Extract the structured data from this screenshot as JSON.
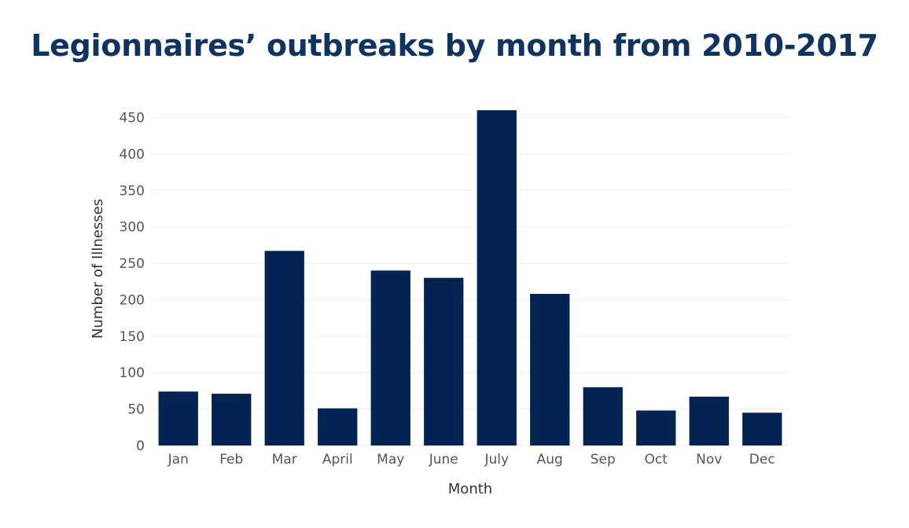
{
  "chart_data": {
    "type": "bar",
    "title": "Legionnaires’ outbreaks by month from 2010-2017",
    "xlabel": "Month",
    "ylabel": "Number of Illnesses",
    "categories": [
      "Jan",
      "Feb",
      "Mar",
      "April",
      "May",
      "June",
      "July",
      "Aug",
      "Sep",
      "Oct",
      "Nov",
      "Dec"
    ],
    "values": [
      74,
      71,
      267,
      51,
      240,
      230,
      460,
      208,
      80,
      48,
      67,
      45
    ],
    "ylim": [
      0,
      470
    ],
    "yticks": [
      0,
      50,
      100,
      150,
      200,
      250,
      300,
      350,
      400,
      450
    ],
    "bar_color": "#032352",
    "grid": true,
    "legend": "none"
  }
}
